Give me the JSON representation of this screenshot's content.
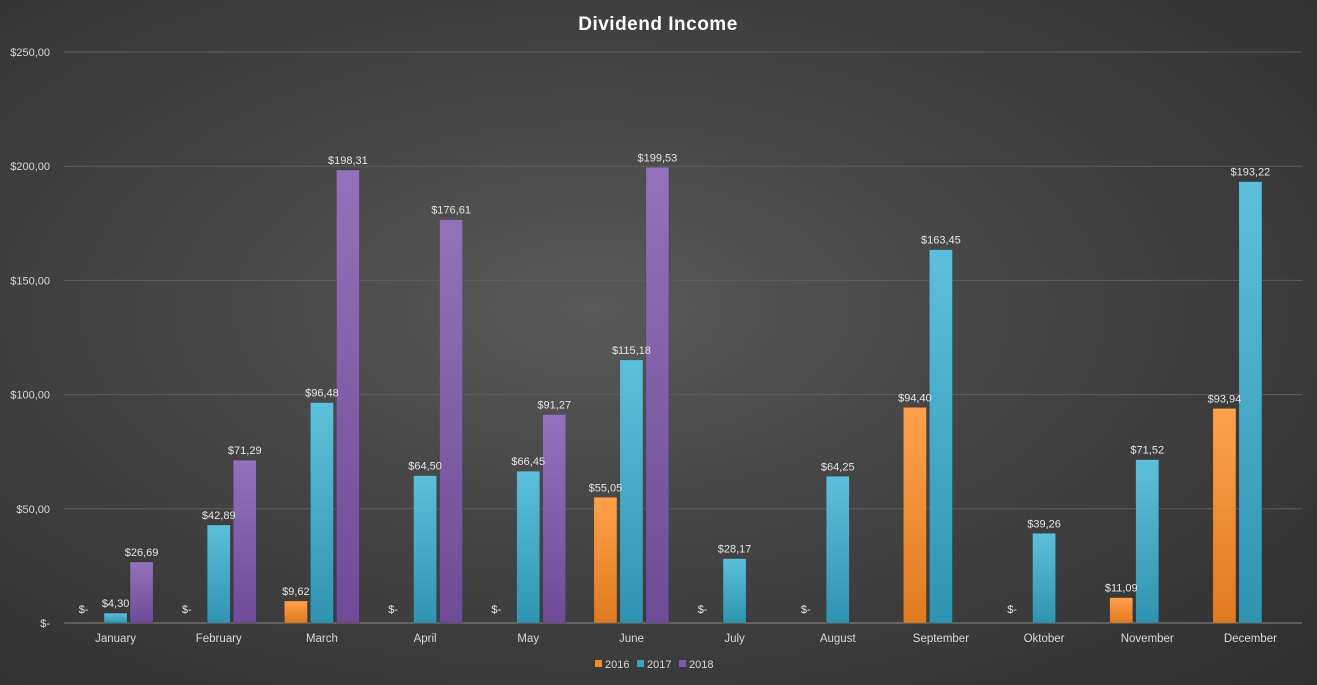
{
  "chart_data": {
    "type": "bar",
    "title": "Dividend  Income",
    "xlabel": "",
    "ylabel": "",
    "ylim": [
      0,
      250
    ],
    "yticks": [
      0,
      50,
      100,
      150,
      200,
      250
    ],
    "ytick_labels": [
      "$-",
      "$50,00",
      "$100,00",
      "$150,00",
      "$200,00",
      "$250,00"
    ],
    "grid": true,
    "legend_position": "bottom",
    "categories": [
      "January",
      "February",
      "March",
      "April",
      "May",
      "June",
      "July",
      "August",
      "September",
      "Oktober",
      "November",
      "December"
    ],
    "series": [
      {
        "name": "2016",
        "color": "#f08a2c",
        "values": [
          0,
          0,
          9.62,
          0,
          0,
          55.05,
          0,
          0,
          94.4,
          0,
          11.09,
          93.94
        ],
        "labels": [
          "$-",
          "$-",
          "$9,62",
          "$-",
          "$-",
          "$55,05",
          "$-",
          "$-",
          "$94,40",
          "$-",
          "$11,09",
          "$93,94"
        ]
      },
      {
        "name": "2017",
        "color": "#3aa3bf",
        "values": [
          4.3,
          42.89,
          96.48,
          64.5,
          66.45,
          115.18,
          28.17,
          64.25,
          163.45,
          39.26,
          71.52,
          193.22
        ],
        "labels": [
          "$4,30",
          "$42,89",
          "$96,48",
          "$64,50",
          "$66,45",
          "$115,18",
          "$28,17",
          "$64,25",
          "$163,45",
          "$39,26",
          "$71,52",
          "$193,22"
        ]
      },
      {
        "name": "2018",
        "color": "#7e5aa6",
        "values": [
          26.69,
          71.29,
          198.31,
          176.61,
          91.27,
          199.53,
          null,
          null,
          null,
          null,
          null,
          null
        ],
        "labels": [
          "$26,69",
          "$71,29",
          "$198,31",
          "$176,61",
          "$91,27",
          "$199,53",
          "",
          "",
          "",
          "",
          "",
          ""
        ]
      }
    ]
  }
}
